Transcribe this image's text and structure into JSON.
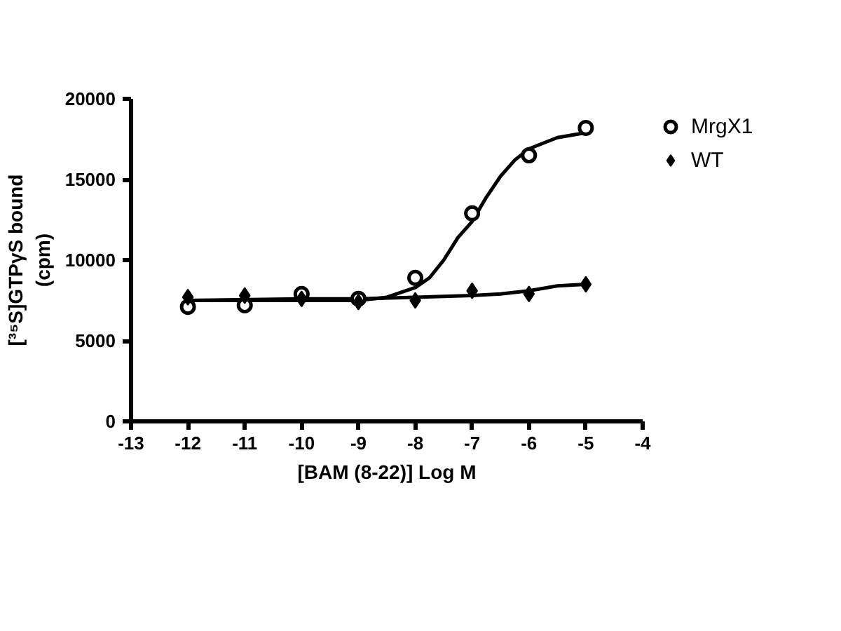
{
  "chart_data": {
    "type": "scatter",
    "xlabel": "[BAM (8-22)] Log M",
    "ylabel": "[³⁵S]GTPγS bound\n(cpm)",
    "xlim": [
      -13,
      -4
    ],
    "xticks": [
      -13,
      -12,
      -11,
      -10,
      -9,
      -8,
      -7,
      -6,
      -5,
      -4
    ],
    "ylim": [
      0,
      20000
    ],
    "yticks": [
      0,
      5000,
      10000,
      15000,
      20000
    ],
    "grid": false,
    "legend": "top right",
    "series": [
      {
        "name": "MrgX1",
        "marker": "circle",
        "color": "#000000",
        "x": [
          -12,
          -11,
          -10,
          -9,
          -8,
          -7,
          -6,
          -5
        ],
        "values": [
          7100,
          7200,
          7900,
          7600,
          8900,
          12900,
          16500,
          18200
        ]
      },
      {
        "name": "WT",
        "marker": "diamond",
        "color": "#000000",
        "x": [
          -12,
          -11,
          -10,
          -9,
          -8,
          -7,
          -6,
          -5
        ],
        "values": [
          7700,
          7800,
          7600,
          7400,
          7500,
          8100,
          7900,
          8500
        ]
      },
      {
        "type": "line",
        "color": "#000000",
        "x": [
          -12,
          -11,
          -10,
          -9,
          -8.5,
          -8,
          -7.75,
          -7.5,
          -7.25,
          -7,
          -6.75,
          -6.5,
          -6.25,
          -6,
          -5.5,
          -5
        ],
        "values": [
          7500,
          7500,
          7500,
          7500,
          7700,
          8300,
          8900,
          10000,
          11400,
          12400,
          13900,
          15200,
          16200,
          16900,
          17600,
          17900
        ]
      },
      {
        "type": "line",
        "color": "#000000",
        "x": [
          -12,
          -10,
          -9,
          -8,
          -7,
          -6.5,
          -6,
          -5.5,
          -5
        ],
        "values": [
          7500,
          7600,
          7600,
          7700,
          7800,
          7900,
          8100,
          8400,
          8500
        ]
      }
    ]
  }
}
